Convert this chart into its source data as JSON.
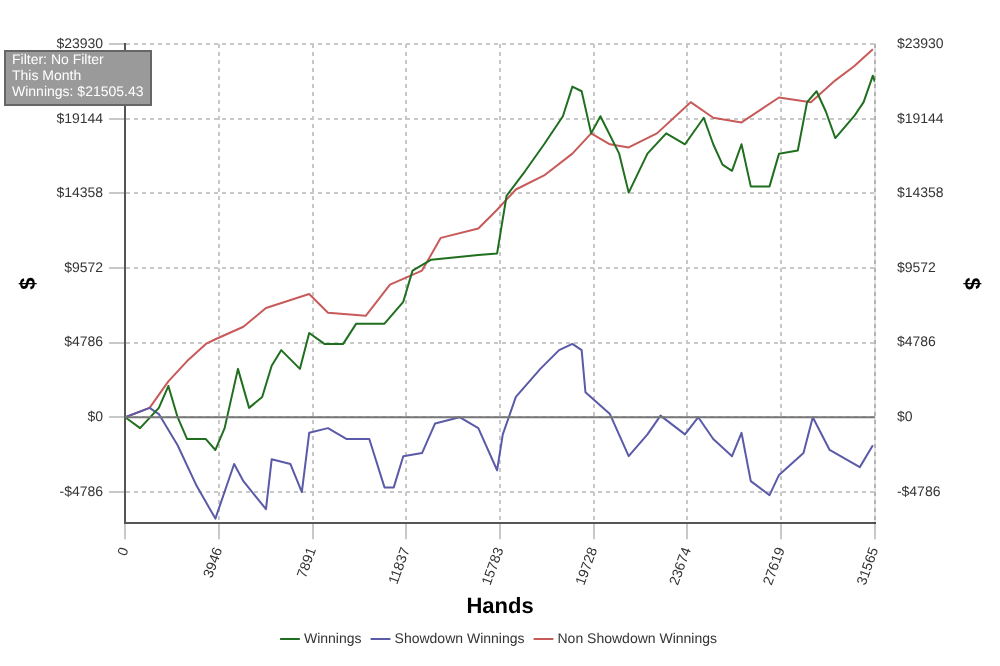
{
  "chart_data": {
    "type": "line",
    "xlabel": "Hands",
    "ylabel": "$",
    "y2label": "$",
    "annotations": [
      "Filter: No Filter",
      "This Month",
      "Winnings: $21505.43"
    ],
    "xlim": [
      0,
      31565
    ],
    "xticks": [
      0,
      3946,
      7891,
      11837,
      15783,
      19728,
      23674,
      27619,
      31565
    ],
    "ylim": [
      -6800,
      23930
    ],
    "yticks": [
      {
        "value": -4786,
        "label": "-$4786"
      },
      {
        "value": 0,
        "label": "$0"
      },
      {
        "value": 4786,
        "label": "$4786"
      },
      {
        "value": 9572,
        "label": "$9572"
      },
      {
        "value": 14358,
        "label": "$14358"
      },
      {
        "value": 19144,
        "label": "$19144"
      },
      {
        "value": 23930,
        "label": "$23930"
      }
    ],
    "y2lim": [
      -6800,
      23930
    ],
    "y2ticks": [
      {
        "value": -4786,
        "label": "-$4786"
      },
      {
        "value": 0,
        "label": "$0"
      },
      {
        "value": 4786,
        "label": "$4786"
      },
      {
        "value": 9572,
        "label": "$9572"
      },
      {
        "value": 14358,
        "label": "$14358"
      },
      {
        "value": 19144,
        "label": "$19144"
      },
      {
        "value": 23930,
        "label": "$23930"
      }
    ],
    "grid": true,
    "legend": "bottom",
    "marker": "none",
    "line_style": "solid",
    "ref_lines": [
      {
        "axis": "y",
        "value": 0,
        "color": "#777777"
      }
    ],
    "series": [
      {
        "name": "Winnings",
        "color": "#1f6f1f",
        "x": [
          0,
          630,
          1420,
          1820,
          2210,
          2610,
          3400,
          3800,
          4190,
          4750,
          5220,
          5770,
          6170,
          6570,
          7360,
          7750,
          8390,
          9180,
          9730,
          10920,
          11710,
          12100,
          12890,
          14870,
          15660,
          16060,
          16850,
          17640,
          18430,
          18830,
          19220,
          19620,
          20010,
          20800,
          21200,
          21990,
          22780,
          23570,
          24360,
          24760,
          25150,
          25550,
          25950,
          26340,
          27130,
          27530,
          28320,
          28710,
          29110,
          29500,
          29900,
          30690,
          31090,
          31480,
          31565
        ],
        "values": [
          0,
          -700,
          600,
          2000,
          0,
          -1400,
          -1400,
          -2100,
          -700,
          3100,
          600,
          1300,
          3300,
          4300,
          3100,
          5400,
          4700,
          4700,
          6000,
          6000,
          7400,
          9400,
          10100,
          10400,
          10500,
          14200,
          15800,
          17500,
          19300,
          21200,
          20900,
          18200,
          19300,
          16900,
          14400,
          16900,
          18200,
          17500,
          19200,
          17500,
          16200,
          15800,
          17500,
          14800,
          14800,
          16900,
          17100,
          20200,
          20900,
          19600,
          17900,
          19300,
          20200,
          21900,
          21505
        ]
      },
      {
        "name": "Showdown Winnings",
        "color": "#5a5aa8",
        "x": [
          0,
          1030,
          1420,
          2210,
          3010,
          3800,
          4590,
          4980,
          5930,
          6170,
          6960,
          7440,
          7750,
          8540,
          9330,
          10280,
          10920,
          11310,
          11710,
          12500,
          13050,
          14080,
          14870,
          15660,
          15900,
          16450,
          17480,
          18270,
          18830,
          19220,
          19380,
          20410,
          21200,
          21990,
          22540,
          23570,
          24130,
          24760,
          25550,
          25950,
          26340,
          27130,
          27530,
          28560,
          28950,
          29660,
          30930,
          31480
        ],
        "values": [
          0,
          600,
          200,
          -1800,
          -4400,
          -6500,
          -3000,
          -4100,
          -5900,
          -2700,
          -3000,
          -4800,
          -1000,
          -700,
          -1400,
          -1400,
          -4500,
          -4500,
          -2500,
          -2300,
          -400,
          0,
          -700,
          -3400,
          -1100,
          1300,
          3100,
          4300,
          4700,
          4300,
          1600,
          200,
          -2500,
          -1100,
          100,
          -1100,
          0,
          -1400,
          -2500,
          -1000,
          -4100,
          -5000,
          -3700,
          -2300,
          0,
          -2100,
          -3200,
          -1800
        ]
      },
      {
        "name": "Non Showdown Winnings",
        "color": "#c85a5a",
        "x": [
          0,
          1030,
          1820,
          2610,
          3400,
          3800,
          4980,
          5930,
          7750,
          8540,
          10130,
          11150,
          12500,
          13290,
          14870,
          15660,
          16450,
          17640,
          18830,
          19620,
          20410,
          21200,
          22390,
          23810,
          24760,
          25950,
          27530,
          28870,
          29900,
          30690,
          31480
        ],
        "values": [
          0,
          600,
          2300,
          3600,
          4700,
          5000,
          5800,
          7000,
          7900,
          6700,
          6500,
          8500,
          9400,
          11500,
          12100,
          13300,
          14600,
          15500,
          16900,
          18200,
          17500,
          17300,
          18200,
          20200,
          19200,
          18900,
          20500,
          20200,
          21600,
          22500,
          23600
        ]
      }
    ]
  }
}
